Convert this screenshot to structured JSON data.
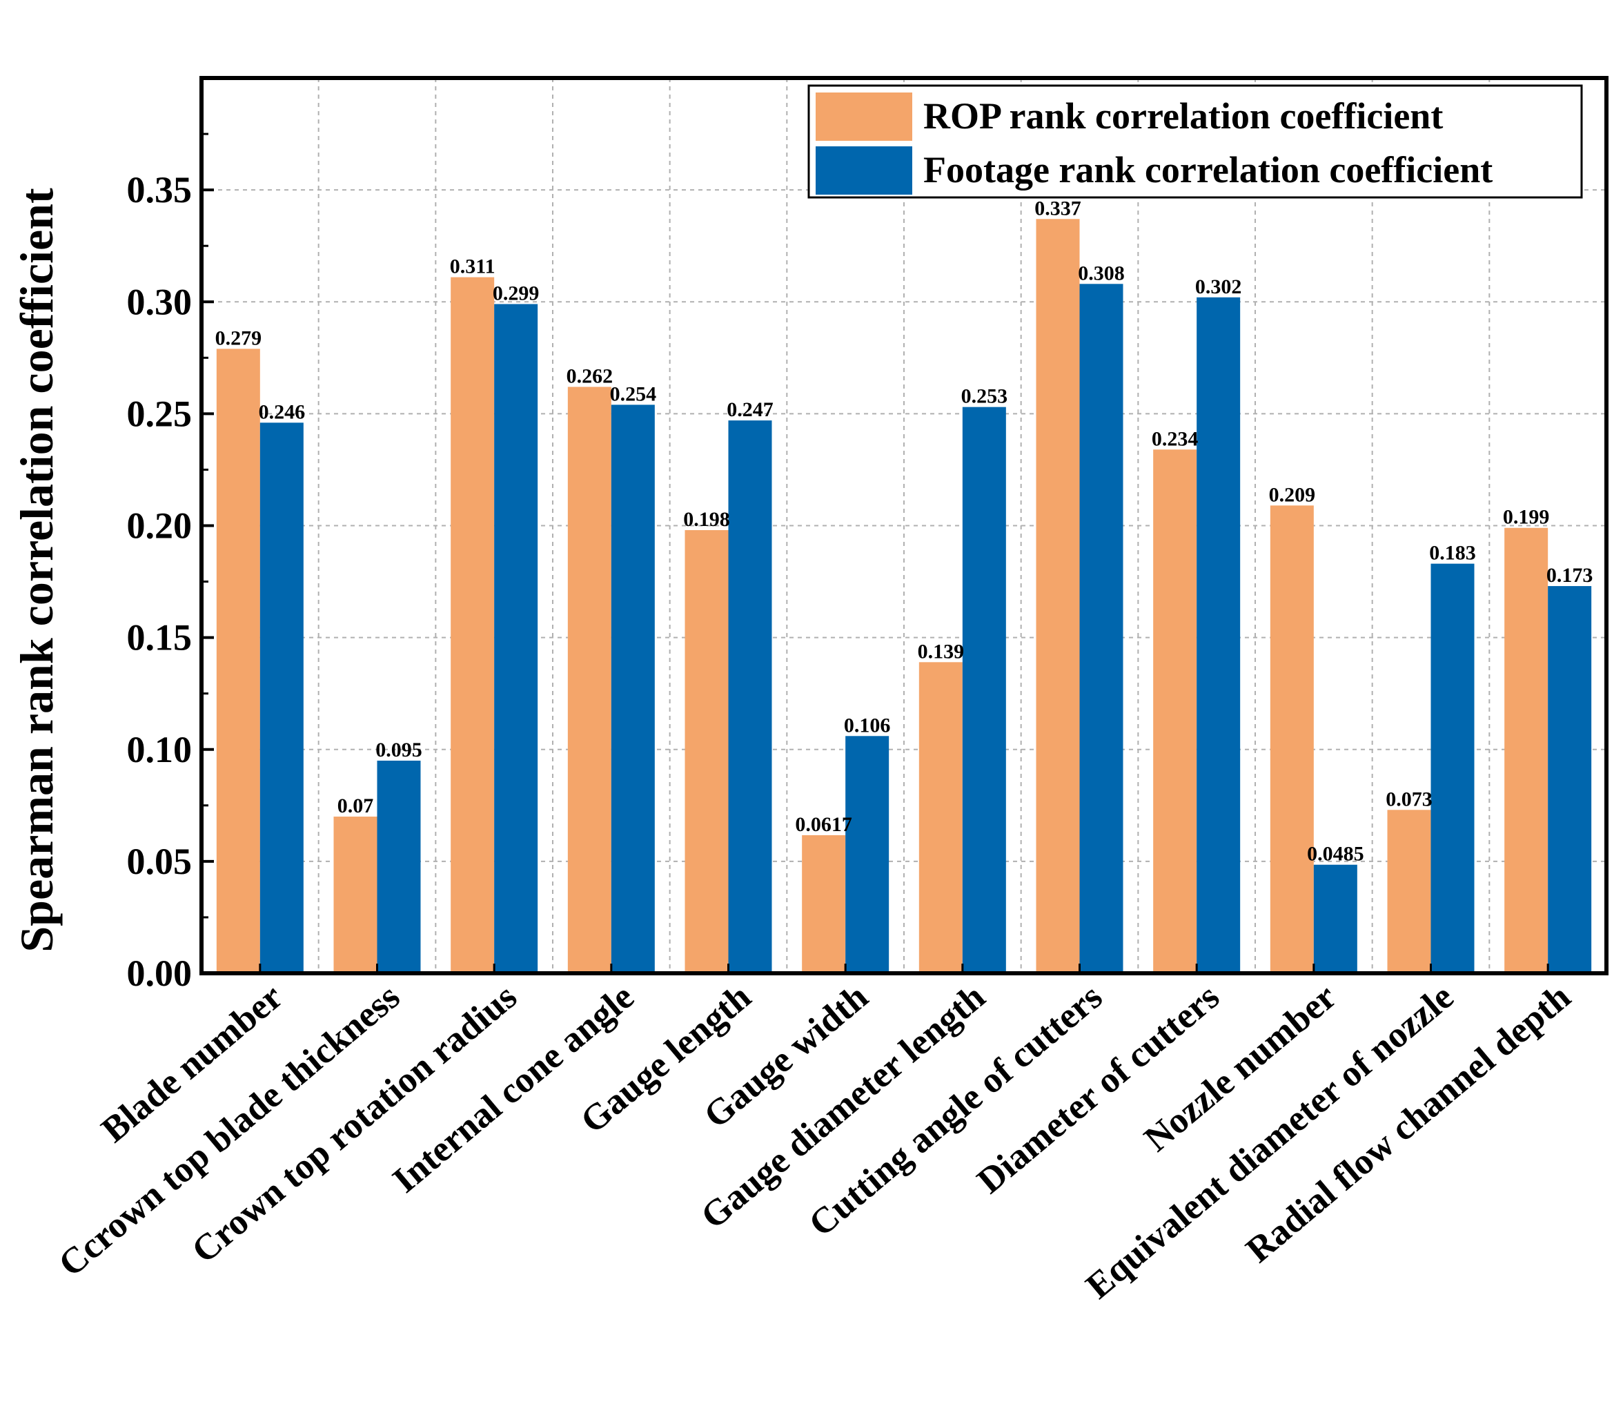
{
  "chart_data": {
    "type": "bar",
    "title": "",
    "xlabel": "",
    "ylabel": "Spearman rank correlation coefficient",
    "ylim": [
      0,
      0.4
    ],
    "yticks": [
      "0.00",
      "0.05",
      "0.10",
      "0.15",
      "0.20",
      "0.25",
      "0.30",
      "0.35"
    ],
    "grid": true,
    "legend_position": "top-right",
    "categories": [
      "Blade number",
      "Ccrown top blade thickness",
      "Crown top rotation radius",
      "Internal cone angle",
      "Gauge length",
      "Gauge width",
      "Gauge diameter length",
      "Cutting angle of cutters",
      "Diameter of cutters",
      "Nozzle number",
      "Equivalent diameter of nozzle",
      "Radial flow channel depth"
    ],
    "series": [
      {
        "name": "ROP rank correlation coefficient",
        "color": "#F4A56A",
        "values": [
          0.279,
          0.07,
          0.311,
          0.262,
          0.198,
          0.0617,
          0.139,
          0.337,
          0.234,
          0.209,
          0.073,
          0.199
        ],
        "labels": [
          "0.279",
          "0.07",
          "0.311",
          "0.262",
          "0.198",
          "0.0617",
          "0.139",
          "0.337",
          "0.234",
          "0.209",
          "0.073",
          "0.199"
        ]
      },
      {
        "name": "Footage rank correlation coefficient",
        "color": "#0066AD",
        "values": [
          0.246,
          0.095,
          0.299,
          0.254,
          0.247,
          0.106,
          0.253,
          0.308,
          0.302,
          0.0485,
          0.183,
          0.173
        ],
        "labels": [
          "0.246",
          "0.095",
          "0.299",
          "0.254",
          "0.247",
          "0.106",
          "0.253",
          "0.308",
          "0.302",
          "0.0485",
          "0.183",
          "0.173"
        ]
      }
    ]
  }
}
